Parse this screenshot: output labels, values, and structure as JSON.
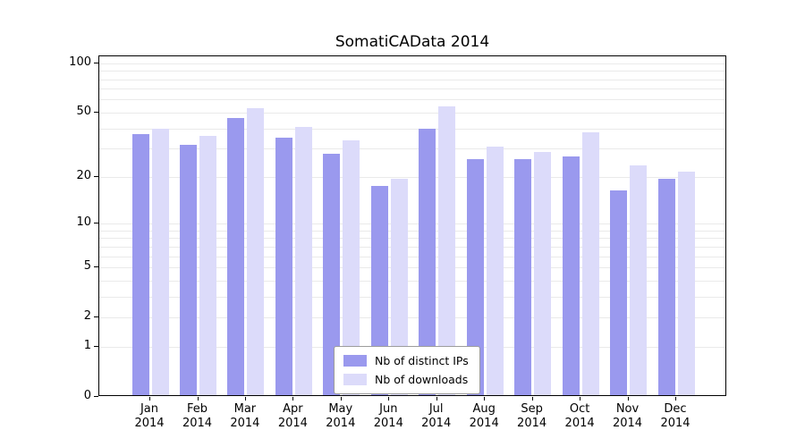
{
  "page": {
    "background": "#ffffff"
  },
  "chart_data": {
    "type": "bar",
    "title": "SomatiCAData 2014",
    "categories": [
      "Jan",
      "Feb",
      "Mar",
      "Apr",
      "May",
      "Jun",
      "Jul",
      "Aug",
      "Sep",
      "Oct",
      "Nov",
      "Dec"
    ],
    "category_year": "2014",
    "series": [
      {
        "name": "Nb of distinct IPs",
        "color": "#9a99ee",
        "values": [
          36,
          31,
          45,
          34,
          27,
          17,
          39,
          25,
          25,
          26,
          16,
          19
        ]
      },
      {
        "name": "Nb of downloads",
        "color": "#dcdbfa",
        "values": [
          39,
          35,
          52,
          40,
          33,
          19,
          53,
          30,
          28,
          37,
          23,
          21
        ]
      }
    ],
    "yticks": [
      0,
      1,
      2,
      5,
      10,
      20,
      50,
      100
    ],
    "minor_gridlines": [
      1,
      2,
      3,
      4,
      5,
      6,
      7,
      8,
      9,
      10,
      20,
      30,
      40,
      50,
      60,
      70,
      80,
      90,
      100
    ],
    "scale": "log1p",
    "ylim": [
      0,
      110
    ],
    "xlabel": "",
    "ylabel": "",
    "grid": true,
    "legend_position": "bottom-center-inside"
  },
  "colors": {
    "grid": "#eaeaea",
    "axis": "#000000",
    "text": "#000000",
    "legend_border": "#9c9c9c",
    "legend_bg": "#ffffff"
  }
}
